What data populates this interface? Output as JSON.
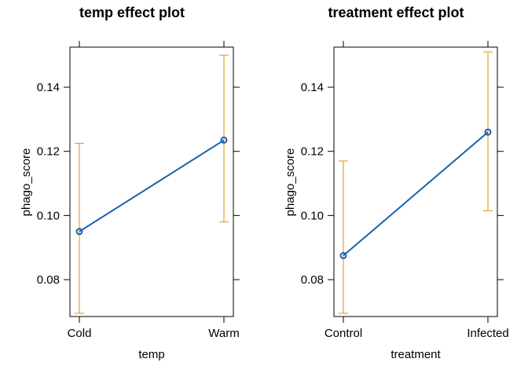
{
  "colors": {
    "line": "#1763AA",
    "ci": "#E8A02F",
    "frame": "#000000"
  },
  "chart_data": [
    {
      "type": "line",
      "title": "temp effect plot",
      "xlabel": "temp",
      "ylabel": "phago_score",
      "categories": [
        "Cold",
        "Warm"
      ],
      "values": [
        0.095,
        0.1235
      ],
      "ci_lower": [
        0.0695,
        0.098
      ],
      "ci_upper": [
        0.1225,
        0.15
      ],
      "yticks": [
        0.08,
        0.1,
        0.12,
        0.14
      ],
      "ytick_labels": [
        "0.08",
        "0.10",
        "0.12",
        "0.14"
      ],
      "ylim": [
        0.0685,
        0.1525
      ],
      "grid": false,
      "legend": "none"
    },
    {
      "type": "line",
      "title": "treatment effect plot",
      "xlabel": "treatment",
      "ylabel": "phago_score",
      "categories": [
        "Control",
        "Infected"
      ],
      "values": [
        0.0875,
        0.126
      ],
      "ci_lower": [
        0.0695,
        0.1015
      ],
      "ci_upper": [
        0.117,
        0.151
      ],
      "yticks": [
        0.08,
        0.1,
        0.12,
        0.14
      ],
      "ytick_labels": [
        "0.08",
        "0.10",
        "0.12",
        "0.14"
      ],
      "ylim": [
        0.0685,
        0.1525
      ],
      "grid": false,
      "legend": "none"
    }
  ]
}
